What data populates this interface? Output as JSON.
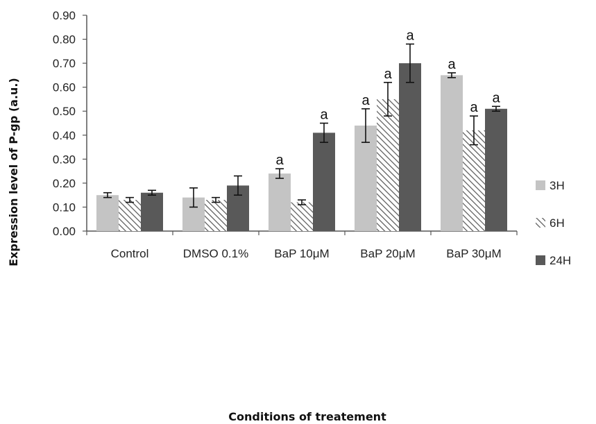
{
  "chart_data": {
    "type": "bar",
    "title": "",
    "xlabel": "Conditions of treatement",
    "ylabel": "Expression level of P-gp (a.u.)",
    "ylim": [
      0,
      0.9
    ],
    "yticks": [
      "0.00",
      "0.10",
      "0.20",
      "0.30",
      "0.40",
      "0.50",
      "0.60",
      "0.70",
      "0.80",
      "0.90"
    ],
    "categories": [
      "Control",
      "DMSO 0.1%",
      "BaP 10μM",
      "BaP 20μM",
      "BaP 30μM"
    ],
    "series": [
      {
        "name": "3H",
        "color": "#c4c4c4",
        "fill": "solid",
        "values": [
          0.15,
          0.14,
          0.24,
          0.44,
          0.65
        ],
        "errors": [
          0.01,
          0.04,
          0.02,
          0.07,
          0.01
        ],
        "annotations": [
          "",
          "",
          "a",
          "a",
          "a"
        ]
      },
      {
        "name": "6H",
        "color": "#555555",
        "fill": "hatched",
        "values": [
          0.13,
          0.13,
          0.12,
          0.55,
          0.42
        ],
        "errors": [
          0.01,
          0.01,
          0.01,
          0.07,
          0.06
        ],
        "annotations": [
          "",
          "",
          "",
          "a",
          "a"
        ]
      },
      {
        "name": "24H",
        "color": "#595959",
        "fill": "solid",
        "values": [
          0.16,
          0.19,
          0.41,
          0.7,
          0.51
        ],
        "errors": [
          0.01,
          0.04,
          0.04,
          0.08,
          0.01
        ],
        "annotations": [
          "",
          "",
          "a",
          "a",
          "a"
        ]
      }
    ],
    "legend": {
      "position": "right"
    },
    "grid": false
  }
}
